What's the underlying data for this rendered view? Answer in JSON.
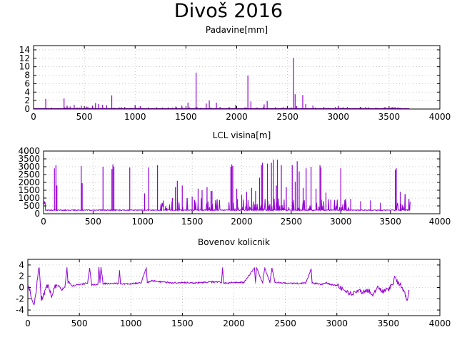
{
  "page": {
    "title": "Divoš 2016"
  },
  "colors": {
    "series": "#9400d3",
    "grid": "#bbbbbb",
    "frame": "#000000"
  },
  "chart_data": [
    {
      "type": "bar",
      "title": "Padavine[mm]",
      "xlabel": "",
      "ylabel": "",
      "xlim": [
        0,
        4000
      ],
      "ylim": [
        0,
        15
      ],
      "xticks": [
        0,
        500,
        1000,
        1500,
        2000,
        2500,
        3000,
        3500,
        4000
      ],
      "yticks": [
        0,
        2,
        4,
        6,
        8,
        10,
        12,
        14
      ],
      "grid": true,
      "x": [
        120,
        300,
        330,
        360,
        400,
        470,
        520,
        580,
        610,
        640,
        680,
        720,
        770,
        1000,
        1050,
        1400,
        1460,
        1520,
        1600,
        1700,
        1730,
        1800,
        1990,
        2110,
        2140,
        2270,
        2300,
        2560,
        2575,
        2590,
        2650,
        2680,
        2750,
        3000,
        3300
      ],
      "y": [
        2.4,
        2.5,
        0.8,
        0.6,
        1.0,
        0.8,
        0.6,
        0.8,
        1.4,
        1.2,
        1.0,
        0.9,
        3.2,
        1.0,
        0.7,
        0.6,
        0.8,
        1.5,
        8.6,
        1.3,
        2.0,
        1.5,
        1.0,
        7.9,
        1.8,
        1.1,
        1.9,
        12.1,
        3.5,
        0.7,
        3.3,
        1.2,
        0.8,
        0.7,
        0.4
      ]
    },
    {
      "type": "bar",
      "title": "LCL visina[m]",
      "xlabel": "",
      "ylabel": "",
      "xlim": [
        0,
        4000
      ],
      "ylim": [
        0,
        4000
      ],
      "xticks": [
        0,
        500,
        1000,
        1500,
        2000,
        2500,
        3000,
        3500,
        4000
      ],
      "yticks": [
        0,
        500,
        1000,
        1500,
        2000,
        2500,
        3000,
        3500,
        4000
      ],
      "grid": true,
      "baseline": 200,
      "xmin": 0,
      "xmax": 3700,
      "x": [
        110,
        125,
        135,
        380,
        390,
        600,
        690,
        700,
        710,
        870,
        1020,
        1060,
        1150,
        1300,
        1330,
        1350,
        1400,
        1450,
        1500,
        1560,
        1600,
        1650,
        1690,
        1700,
        1890,
        1900,
        1910,
        1950,
        2000,
        2050,
        2100,
        2140,
        2180,
        2200,
        2210,
        2260,
        2300,
        2320,
        2350,
        2360,
        2400,
        2450,
        2510,
        2540,
        2560,
        2580,
        2620,
        2650,
        2700,
        2750,
        2790,
        2800,
        2850,
        2900,
        3000,
        3050,
        3100,
        3200,
        3300,
        3400,
        3550,
        3560,
        3600,
        3650
      ],
      "y": [
        2900,
        3100,
        1800,
        3050,
        1950,
        3000,
        2850,
        3150,
        3000,
        2950,
        1300,
        2950,
        3100,
        1000,
        1700,
        2100,
        1800,
        1000,
        1100,
        1600,
        1500,
        1700,
        1450,
        1450,
        3000,
        3150,
        3050,
        1600,
        1200,
        1400,
        1650,
        1450,
        2300,
        3100,
        3250,
        3200,
        3250,
        3450,
        1800,
        3450,
        3100,
        1700,
        3100,
        2050,
        3350,
        2700,
        1650,
        2900,
        3000,
        1600,
        3100,
        2950,
        1350,
        900,
        2900,
        950,
        950,
        800,
        850,
        700,
        2800,
        2900,
        1400,
        1200
      ]
    },
    {
      "type": "line",
      "title": "Bovenov kolicnik",
      "xlabel": "",
      "ylabel": "",
      "xlim": [
        0,
        4000
      ],
      "ylim": [
        -5,
        5
      ],
      "xticks": [
        0,
        500,
        1000,
        1500,
        2000,
        2500,
        3000,
        3500,
        4000
      ],
      "yticks": [
        -4,
        -2,
        0,
        2,
        4
      ],
      "grid": true,
      "x": [
        0,
        20,
        40,
        60,
        80,
        100,
        110,
        120,
        130,
        150,
        180,
        200,
        230,
        260,
        300,
        330,
        360,
        380,
        390,
        400,
        430,
        500,
        580,
        600,
        620,
        680,
        690,
        700,
        710,
        730,
        800,
        880,
        890,
        900,
        1000,
        1060,
        1100,
        1150,
        1160,
        1170,
        1200,
        1300,
        1400,
        1500,
        1600,
        1700,
        1800,
        1880,
        1890,
        1900,
        1950,
        2000,
        2100,
        2200,
        2210,
        2220,
        2280,
        2300,
        2350,
        2370,
        2400,
        2500,
        2600,
        2700,
        2750,
        2760,
        2800,
        2850,
        2900,
        2950,
        3000,
        3050,
        3100,
        3150,
        3200,
        3250,
        3300,
        3350,
        3400,
        3450,
        3500,
        3550,
        3560,
        3580,
        3620,
        3660,
        3680,
        3700
      ],
      "y": [
        0,
        -0.5,
        -2.0,
        -3.0,
        -1.0,
        2.8,
        3.5,
        0.5,
        -2.0,
        -1.5,
        0,
        0.3,
        -1.5,
        0.2,
        0.4,
        -0.5,
        0.2,
        3.5,
        0.8,
        1.0,
        0.3,
        0.5,
        0.8,
        3.4,
        0.5,
        0.6,
        3.5,
        0.9,
        3.5,
        0.7,
        0.7,
        0.7,
        3.0,
        0.7,
        0.6,
        0.8,
        0.8,
        3.5,
        0.9,
        0.9,
        1.2,
        1.0,
        0.8,
        0.9,
        0.8,
        0.9,
        1.0,
        0.9,
        3.5,
        0.8,
        0.8,
        0.9,
        0.9,
        3.5,
        0.8,
        3.5,
        0.8,
        3.5,
        0.9,
        3.4,
        0.9,
        0.8,
        0.7,
        0.8,
        3.3,
        0.8,
        0.7,
        0.6,
        0.8,
        0.5,
        0.4,
        -0.3,
        -0.8,
        -1.2,
        -0.5,
        -0.9,
        -0.4,
        -1.2,
        0.2,
        -0.8,
        -0.3,
        0.8,
        2.0,
        1.0,
        0.5,
        -1.0,
        -2.3,
        -0.5
      ]
    }
  ]
}
